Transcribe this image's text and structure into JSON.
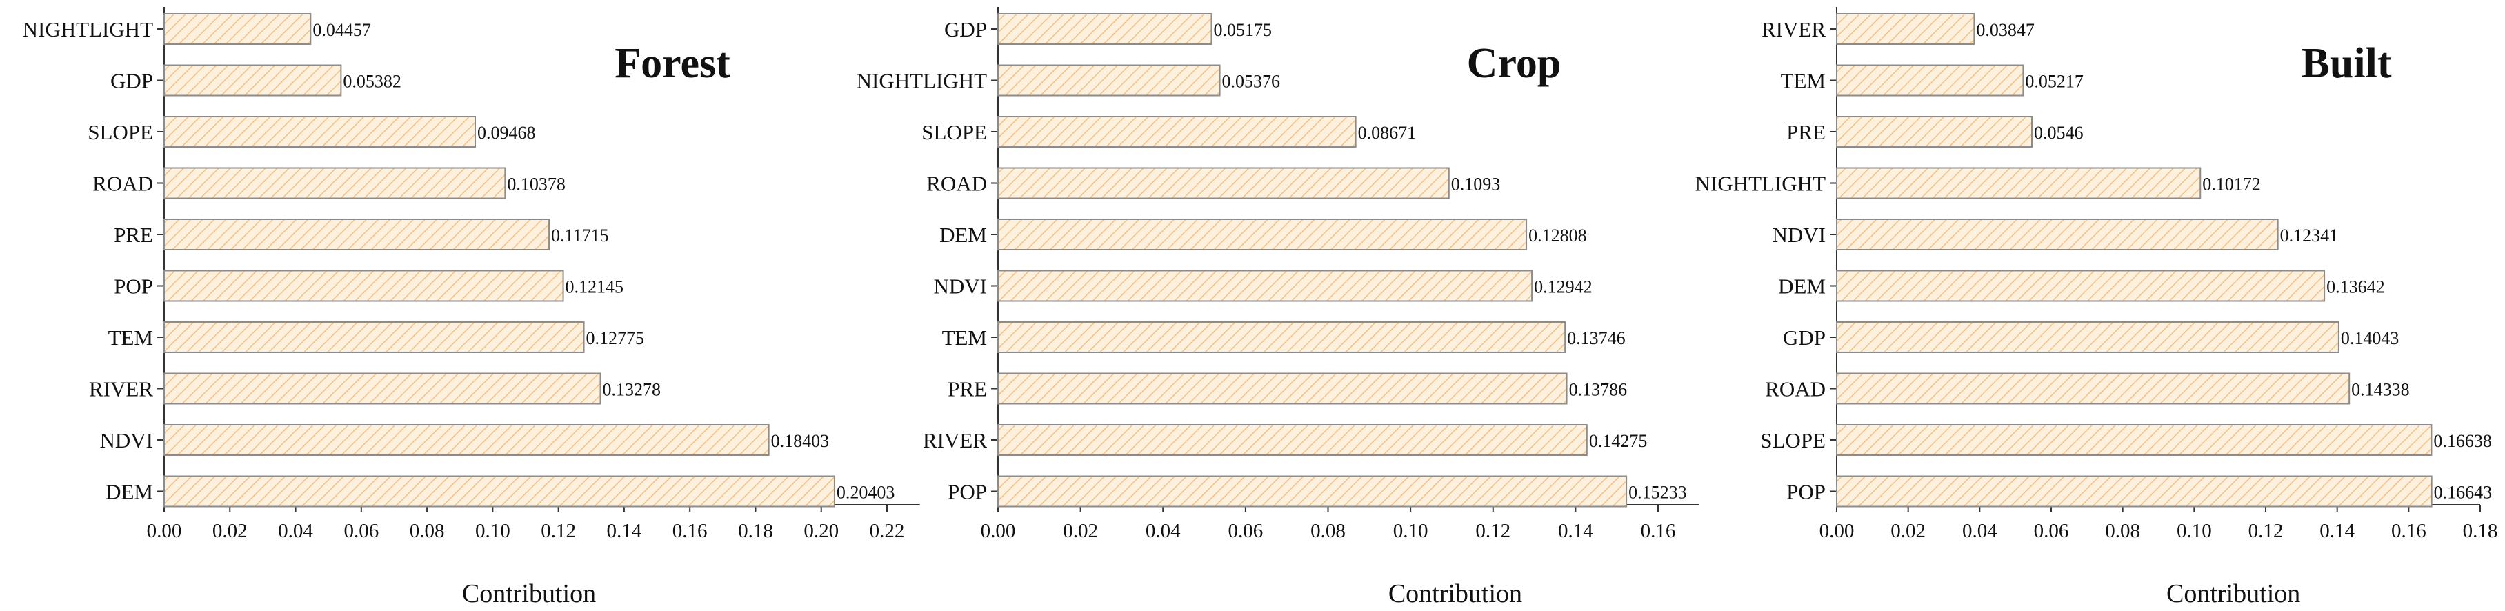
{
  "chart_data": [
    {
      "type": "bar",
      "orientation": "horizontal",
      "title": "Forest",
      "xlabel": "Contribution",
      "ylabel": "",
      "xlim": [
        0,
        0.23
      ],
      "xticks": [
        "0.00",
        "0.02",
        "0.04",
        "0.06",
        "0.08",
        "0.10",
        "0.12",
        "0.14",
        "0.16",
        "0.18",
        "0.20",
        "0.22"
      ],
      "categories": [
        "NIGHTLIGHT",
        "GDP",
        "SLOPE",
        "ROAD",
        "PRE",
        "POP",
        "TEM",
        "RIVER",
        "NDVI",
        "DEM"
      ],
      "values": [
        0.04457,
        0.05382,
        0.09468,
        0.10378,
        0.11715,
        0.12145,
        0.12775,
        0.13278,
        0.18403,
        0.20403
      ],
      "labels": [
        "0.04457",
        "0.05382",
        "0.09468",
        "0.10378",
        "0.11715",
        "0.12145",
        "0.12775",
        "0.13278",
        "0.18403",
        "0.20403"
      ],
      "grid": false
    },
    {
      "type": "bar",
      "orientation": "horizontal",
      "title": "Crop",
      "xlabel": "Contribution",
      "ylabel": "",
      "xlim": [
        0,
        0.17
      ],
      "xticks": [
        "0.00",
        "0.02",
        "0.04",
        "0.06",
        "0.08",
        "0.10",
        "0.12",
        "0.14",
        "0.16"
      ],
      "categories": [
        "GDP",
        "NIGHTLIGHT",
        "SLOPE",
        "ROAD",
        "DEM",
        "NDVI",
        "TEM",
        "PRE",
        "RIVER",
        "POP"
      ],
      "values": [
        0.05175,
        0.05376,
        0.08671,
        0.1093,
        0.12808,
        0.12942,
        0.13746,
        0.13786,
        0.14275,
        0.15233
      ],
      "labels": [
        "0.05175",
        "0.05376",
        "0.08671",
        "0.1093",
        "0.12808",
        "0.12942",
        "0.13746",
        "0.13786",
        "0.14275",
        "0.15233"
      ],
      "grid": false
    },
    {
      "type": "bar",
      "orientation": "horizontal",
      "title": "Built",
      "xlabel": "Contribution",
      "ylabel": "",
      "xlim": [
        0,
        0.18
      ],
      "xticks": [
        "0.00",
        "0.02",
        "0.04",
        "0.06",
        "0.08",
        "0.10",
        "0.12",
        "0.14",
        "0.16",
        "0.18"
      ],
      "categories": [
        "RIVER",
        "TEM",
        "PRE",
        "NIGHTLIGHT",
        "NDVI",
        "DEM",
        "GDP",
        "ROAD",
        "SLOPE",
        "POP"
      ],
      "values": [
        0.03847,
        0.05217,
        0.0546,
        0.10172,
        0.12341,
        0.13642,
        0.14043,
        0.14338,
        0.16638,
        0.16643
      ],
      "labels": [
        "0.03847",
        "0.05217",
        "0.0546",
        "0.10172",
        "0.12341",
        "0.13642",
        "0.14043",
        "0.14338",
        "0.16638",
        "0.16643"
      ],
      "grid": false
    }
  ],
  "colors": {
    "bar_fill": "#fdf0dc",
    "bar_hatch": "#f0c089",
    "bar_stroke": "#8c8c8c",
    "axis": "#333333",
    "text": "#111111"
  }
}
